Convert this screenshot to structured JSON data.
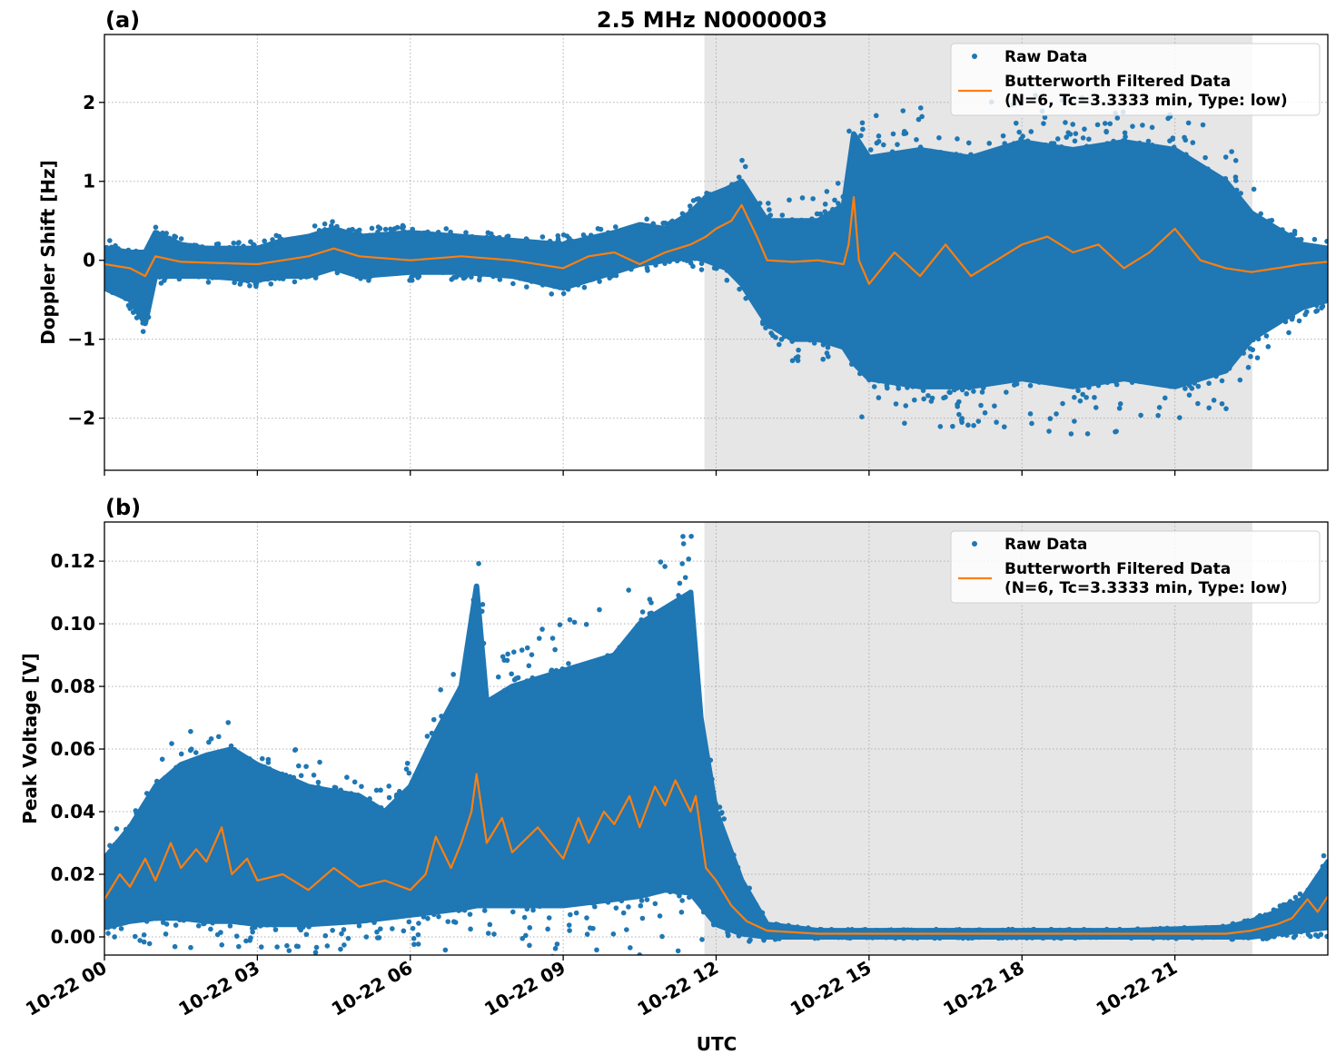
{
  "chart_data": {
    "title": "2.5 MHz N0000003",
    "xlabel": "UTC",
    "x_unit": "hours since 10-22 00:00",
    "xlim": [
      0,
      24
    ],
    "x_ticks": [
      0,
      3,
      6,
      9,
      12,
      15,
      18,
      21
    ],
    "x_tick_labels": [
      "10-22 00",
      "10-22 03",
      "10-22 06",
      "10-22 09",
      "10-22 12",
      "10-22 15",
      "10-22 18",
      "10-22 21"
    ],
    "shaded_region": {
      "x_start": 11.77,
      "x_end": 22.52,
      "color": "#e6e6e6"
    },
    "grid": true,
    "colors": {
      "raw": "#1f77b4",
      "filtered": "#ff7f0e",
      "shade": "#e6e6e6"
    },
    "panels": [
      {
        "panel_label": "(a)",
        "type": "scatter+line",
        "ylabel": "Doppler Shift [Hz]",
        "ylim": [
          -2.66,
          2.86
        ],
        "y_ticks": [
          -2,
          -1,
          0,
          1,
          2
        ],
        "y_tick_labels": [
          "−2",
          "−1",
          "0",
          "1",
          "2"
        ],
        "legend": {
          "position": "top-right",
          "entries": [
            {
              "label": "Raw Data",
              "marker": "dot"
            },
            {
              "label": "Butterworth Filtered Data\n(N=6, Tc=3.3333 min, Type: low)",
              "marker": "line"
            }
          ]
        },
        "series": [
          {
            "name": "Raw Data",
            "kind": "envelope-scatter",
            "x": [
              0,
              0.5,
              0.8,
              1.0,
              1.5,
              2,
              3,
              3.5,
              4,
              4.5,
              5,
              6,
              7,
              8,
              9,
              10,
              10.5,
              11,
              11.5,
              11.8,
              12.2,
              12.5,
              12.8,
              13,
              13.5,
              14,
              14.5,
              14.7,
              15,
              16,
              17,
              18,
              19,
              20,
              21,
              22,
              22.5,
              23,
              23.5,
              24
            ],
            "upper": [
              0.15,
              0.1,
              0.1,
              0.35,
              0.2,
              0.15,
              0.15,
              0.25,
              0.3,
              0.4,
              0.3,
              0.35,
              0.3,
              0.25,
              0.2,
              0.35,
              0.45,
              0.4,
              0.6,
              0.8,
              0.9,
              1.0,
              0.7,
              0.5,
              0.5,
              0.5,
              0.7,
              1.6,
              1.3,
              1.4,
              1.3,
              1.5,
              1.4,
              1.5,
              1.4,
              1.0,
              0.6,
              0.4,
              0.2,
              0.15
            ],
            "lower": [
              -0.35,
              -0.5,
              -0.8,
              -0.2,
              -0.2,
              -0.2,
              -0.25,
              -0.2,
              -0.2,
              -0.1,
              -0.2,
              -0.15,
              -0.15,
              -0.2,
              -0.35,
              -0.15,
              -0.05,
              0.0,
              0.05,
              0.0,
              -0.1,
              -0.3,
              -0.6,
              -0.8,
              -1.0,
              -1.0,
              -1.1,
              -1.3,
              -1.5,
              -1.6,
              -1.6,
              -1.5,
              -1.6,
              -1.5,
              -1.6,
              -1.4,
              -1.0,
              -0.8,
              -0.6,
              -0.5
            ]
          },
          {
            "name": "Butterworth Filtered Data",
            "kind": "line",
            "x": [
              0,
              0.5,
              0.8,
              1.0,
              1.5,
              2,
              3,
              3.5,
              4,
              4.5,
              5,
              6,
              7,
              8,
              9,
              9.5,
              10,
              10.5,
              11,
              11.5,
              11.8,
              12,
              12.3,
              12.5,
              12.8,
              13,
              13.5,
              14,
              14.5,
              14.6,
              14.7,
              14.8,
              15,
              15.5,
              16,
              16.5,
              17,
              17.5,
              18,
              18.5,
              19,
              19.5,
              20,
              20.5,
              21,
              21.5,
              22,
              22.5,
              23,
              23.5,
              24
            ],
            "y": [
              -0.05,
              -0.1,
              -0.2,
              0.05,
              -0.02,
              -0.03,
              -0.05,
              0.0,
              0.05,
              0.15,
              0.05,
              0.0,
              0.05,
              0.0,
              -0.1,
              0.05,
              0.1,
              -0.05,
              0.1,
              0.2,
              0.3,
              0.4,
              0.5,
              0.7,
              0.3,
              0.0,
              -0.02,
              0.0,
              -0.05,
              0.2,
              0.8,
              0.0,
              -0.3,
              0.1,
              -0.2,
              0.2,
              -0.2,
              0.0,
              0.2,
              0.3,
              0.1,
              0.2,
              -0.1,
              0.1,
              0.4,
              0.0,
              -0.1,
              -0.15,
              -0.1,
              -0.05,
              -0.02
            ]
          }
        ]
      },
      {
        "panel_label": "(b)",
        "type": "scatter+line",
        "ylabel": "Peak Voltage [V]",
        "ylim": [
          -0.0058,
          0.1325
        ],
        "y_ticks": [
          0.0,
          0.02,
          0.04,
          0.06,
          0.08,
          0.1,
          0.12
        ],
        "y_tick_labels": [
          "0.00",
          "0.02",
          "0.04",
          "0.06",
          "0.08",
          "0.10",
          "0.12"
        ],
        "legend": {
          "position": "top-right",
          "entries": [
            {
              "label": "Raw Data",
              "marker": "dot"
            },
            {
              "label": "Butterworth Filtered Data\n(N=6, Tc=3.3333 min, Type: low)",
              "marker": "line"
            }
          ]
        },
        "series": [
          {
            "name": "Raw Data",
            "kind": "envelope-scatter",
            "x": [
              0,
              0.5,
              1,
              1.5,
              2,
              2.5,
              3,
              4,
              5,
              5.5,
              6,
              6.5,
              7,
              7.3,
              7.5,
              8,
              9,
              10,
              10.5,
              11,
              11.5,
              11.7,
              12,
              12.5,
              13,
              14,
              17,
              20,
              22,
              22.5,
              23,
              23.5,
              24
            ],
            "upper": [
              0.025,
              0.035,
              0.048,
              0.055,
              0.058,
              0.06,
              0.055,
              0.048,
              0.045,
              0.04,
              0.048,
              0.065,
              0.08,
              0.112,
              0.075,
              0.08,
              0.085,
              0.09,
              0.1,
              0.105,
              0.11,
              0.07,
              0.04,
              0.018,
              0.004,
              0.002,
              0.002,
              0.002,
              0.003,
              0.005,
              0.008,
              0.012,
              0.024
            ],
            "lower": [
              0.003,
              0.005,
              0.006,
              0.006,
              0.005,
              0.005,
              0.004,
              0.004,
              0.005,
              0.006,
              0.007,
              0.008,
              0.009,
              0.01,
              0.01,
              0.01,
              0.01,
              0.012,
              0.013,
              0.015,
              0.014,
              0.01,
              0.004,
              0.001,
              0.0,
              0.0,
              0.0,
              0.0,
              0.0,
              0.0,
              0.001,
              0.002,
              0.003
            ]
          },
          {
            "name": "Butterworth Filtered Data",
            "kind": "line",
            "x": [
              0,
              0.3,
              0.5,
              0.8,
              1,
              1.3,
              1.5,
              1.8,
              2,
              2.3,
              2.5,
              2.8,
              3,
              3.5,
              4,
              4.5,
              5,
              5.5,
              6,
              6.3,
              6.5,
              6.8,
              7,
              7.2,
              7.3,
              7.5,
              7.8,
              8,
              8.5,
              9,
              9.3,
              9.5,
              9.8,
              10,
              10.3,
              10.5,
              10.8,
              11,
              11.2,
              11.5,
              11.6,
              11.8,
              12,
              12.3,
              12.6,
              13,
              14,
              17,
              20,
              22,
              22.5,
              23,
              23.3,
              23.6,
              23.8,
              24
            ],
            "y": [
              0.012,
              0.02,
              0.016,
              0.025,
              0.018,
              0.03,
              0.022,
              0.028,
              0.024,
              0.035,
              0.02,
              0.025,
              0.018,
              0.02,
              0.015,
              0.022,
              0.016,
              0.018,
              0.015,
              0.02,
              0.032,
              0.022,
              0.03,
              0.04,
              0.052,
              0.03,
              0.038,
              0.027,
              0.035,
              0.025,
              0.038,
              0.03,
              0.04,
              0.036,
              0.045,
              0.035,
              0.048,
              0.042,
              0.05,
              0.04,
              0.045,
              0.022,
              0.018,
              0.01,
              0.005,
              0.002,
              0.001,
              0.001,
              0.001,
              0.001,
              0.002,
              0.004,
              0.006,
              0.012,
              0.008,
              0.013
            ]
          }
        ]
      }
    ]
  }
}
